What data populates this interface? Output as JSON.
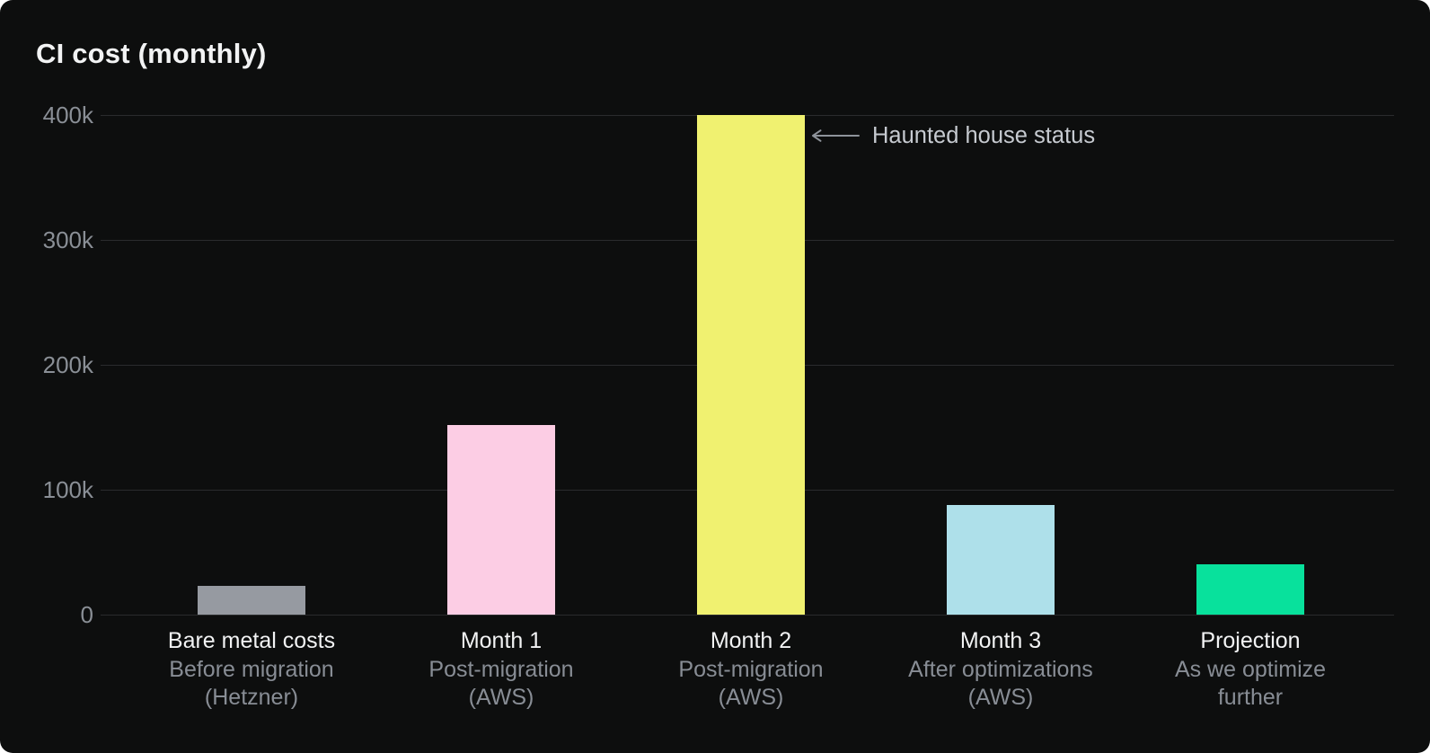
{
  "page": {
    "background": "#ffffff"
  },
  "card": {
    "background": "#0d0e0e"
  },
  "chart_data": {
    "type": "bar",
    "title": "CI cost (monthly)",
    "xlabel": "",
    "ylabel": "",
    "ylim": [
      0,
      400000
    ],
    "grid": true,
    "legend": "none",
    "yticks": [
      {
        "label": "0",
        "value": 0
      },
      {
        "label": "100k",
        "value": 100000
      },
      {
        "label": "200k",
        "value": 200000
      },
      {
        "label": "300k",
        "value": 300000
      },
      {
        "label": "400k",
        "value": 400000
      }
    ],
    "categories": [
      {
        "label": "Bare metal costs",
        "sublabel_lines": [
          "Before migration",
          "(Hetzner)"
        ],
        "value": 23000,
        "color": "#969aa1"
      },
      {
        "label": "Month 1",
        "sublabel_lines": [
          "Post-migration",
          "(AWS)"
        ],
        "value": 152000,
        "color": "#fccde4"
      },
      {
        "label": "Month 2",
        "sublabel_lines": [
          "Post-migration",
          "(AWS)"
        ],
        "value": 400000,
        "color": "#f0f170"
      },
      {
        "label": "Month 3",
        "sublabel_lines": [
          "After optimizations",
          "(AWS)"
        ],
        "value": 88000,
        "color": "#aee0ea"
      },
      {
        "label": "Projection",
        "sublabel_lines": [
          "As we optimize",
          "further"
        ],
        "value": 40000,
        "color": "#08e19c"
      }
    ],
    "annotation": {
      "text": "Haunted house status",
      "arrow_direction": "left",
      "points_to": "Month 2"
    }
  },
  "colors": {
    "title": "#f2f3f4",
    "tick_label": "#8a8f96",
    "gridline": "#2a2b2d",
    "category_label": "#f2f3f4",
    "category_sublabel": "#888d95",
    "annotation_text": "#c6cad0",
    "annotation_arrow": "#8e939a"
  }
}
